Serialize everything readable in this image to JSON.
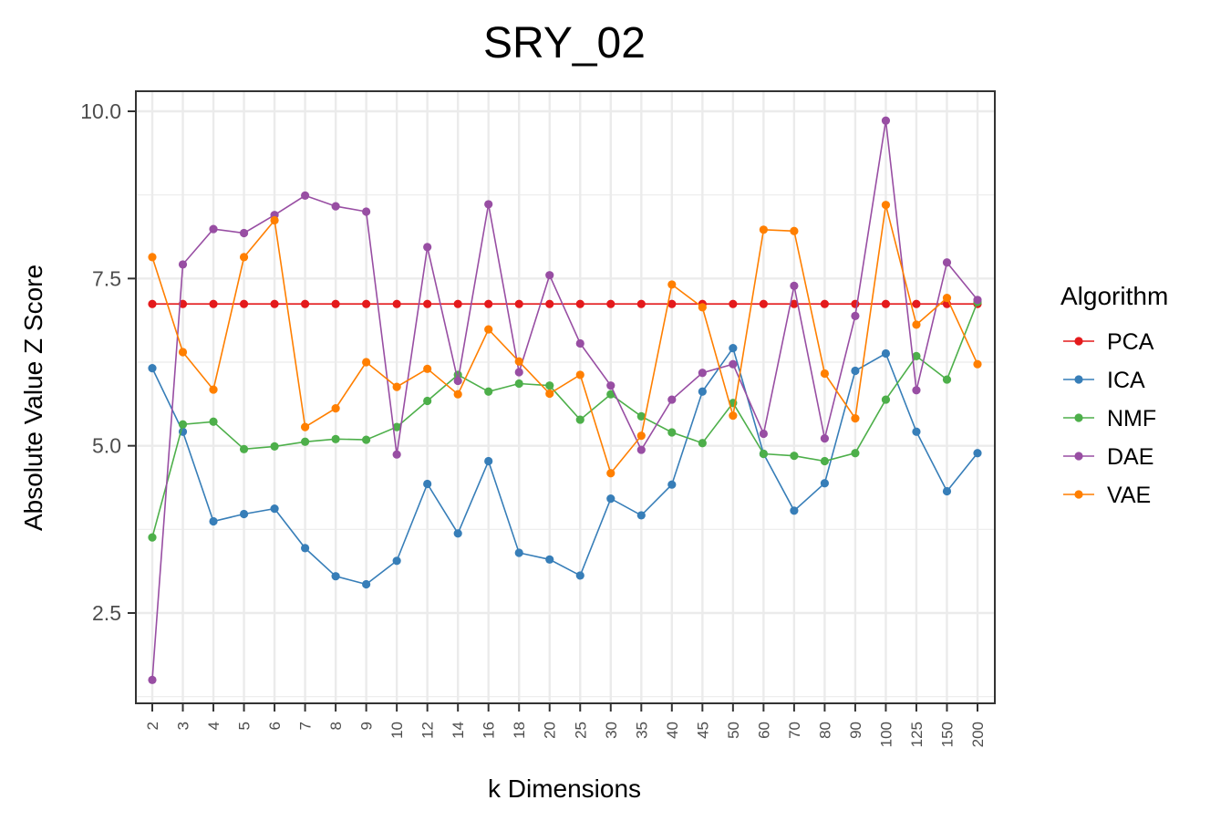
{
  "chart_data": {
    "type": "line",
    "title": "SRY_02",
    "xlabel": "k Dimensions",
    "ylabel": "Absolute Value Z Score",
    "categories": [
      "2",
      "3",
      "4",
      "5",
      "6",
      "7",
      "8",
      "9",
      "10",
      "12",
      "14",
      "16",
      "18",
      "20",
      "25",
      "30",
      "35",
      "40",
      "45",
      "50",
      "60",
      "70",
      "80",
      "90",
      "100",
      "125",
      "150",
      "200"
    ],
    "ylim": [
      1.15,
      10.3
    ],
    "yticks": [
      2.5,
      5.0,
      7.5,
      10.0
    ],
    "ytick_labels": [
      "2.5",
      "5.0",
      "7.5",
      "10.0"
    ],
    "grid": true,
    "legend": {
      "title": "Algorithm",
      "position": "right"
    },
    "series": [
      {
        "name": "PCA",
        "color": "#e41a1c",
        "values": [
          7.12,
          7.12,
          7.12,
          7.12,
          7.12,
          7.12,
          7.12,
          7.12,
          7.12,
          7.12,
          7.12,
          7.12,
          7.12,
          7.12,
          7.12,
          7.12,
          7.12,
          7.12,
          7.12,
          7.12,
          7.12,
          7.12,
          7.12,
          7.12,
          7.12,
          7.12,
          7.12,
          7.12
        ]
      },
      {
        "name": "ICA",
        "color": "#377eb8",
        "values": [
          6.16,
          5.21,
          3.87,
          3.98,
          4.06,
          3.47,
          3.05,
          2.93,
          3.28,
          4.43,
          3.69,
          4.77,
          3.4,
          3.3,
          3.06,
          4.21,
          3.96,
          4.42,
          5.81,
          6.46,
          4.88,
          4.03,
          4.44,
          6.12,
          6.38,
          5.21,
          4.32,
          4.89
        ]
      },
      {
        "name": "NMF",
        "color": "#4daf4a",
        "values": [
          3.63,
          5.32,
          5.36,
          4.95,
          4.99,
          5.06,
          5.1,
          5.09,
          5.28,
          5.67,
          6.06,
          5.81,
          5.93,
          5.9,
          5.39,
          5.77,
          5.44,
          5.2,
          5.04,
          5.64,
          4.88,
          4.85,
          4.77,
          4.89,
          5.69,
          6.34,
          5.99,
          7.15
        ]
      },
      {
        "name": "DAE",
        "color": "#984ea3",
        "values": [
          1.5,
          7.71,
          8.24,
          8.18,
          8.45,
          8.74,
          8.58,
          8.5,
          4.87,
          7.97,
          5.97,
          8.61,
          6.1,
          7.55,
          6.53,
          5.9,
          4.94,
          5.69,
          6.09,
          6.22,
          5.18,
          7.39,
          5.11,
          6.94,
          9.86,
          5.83,
          7.74,
          7.18
        ]
      },
      {
        "name": "VAE",
        "color": "#ff7f00",
        "values": [
          7.82,
          6.4,
          5.84,
          7.82,
          8.37,
          5.28,
          5.56,
          6.25,
          5.88,
          6.15,
          5.77,
          6.74,
          6.26,
          5.78,
          6.06,
          4.59,
          5.15,
          7.41,
          7.07,
          5.45,
          8.23,
          8.21,
          6.08,
          5.41,
          8.6,
          6.81,
          7.21,
          6.22
        ]
      }
    ]
  }
}
